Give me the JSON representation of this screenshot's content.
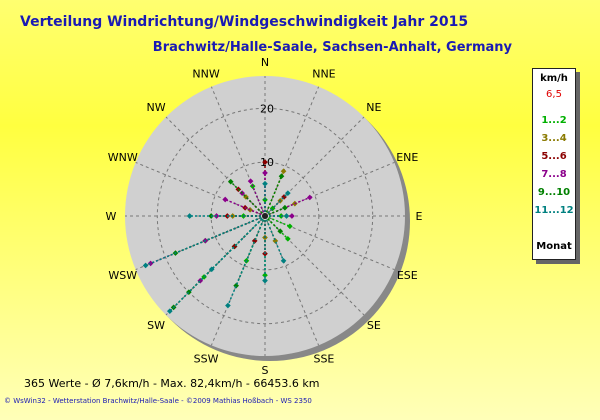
{
  "title": "Verteilung Windrichtung/Windgeschwindigkeit  Jahr 2015",
  "subtitle": "Brachwitz/Halle-Saale, Sachsen-Anhalt, Germany",
  "legend": {
    "header": "km/h",
    "top_value": "6,5",
    "items": [
      {
        "label": "1...2",
        "color": "#00b000"
      },
      {
        "label": "3...4",
        "color": "#8a7a00"
      },
      {
        "label": "5...6",
        "color": "#8b0000"
      },
      {
        "label": "7...8",
        "color": "#8b008b"
      },
      {
        "label": "9...10",
        "color": "#008000"
      },
      {
        "label": "11...12",
        "color": "#008080"
      }
    ],
    "footer": "Monat"
  },
  "footer": {
    "stats": "365 Werte   -   Ø 7,6km/h   -   Max. 82,4km/h   -   66453.6 km",
    "credits": "© WsWin32   -   Wetterstation Brachwitz/Halle-Saale   -   ©2009 Mathias Hoßbach - WS 2350"
  },
  "chart_data": {
    "type": "scatter",
    "title": "Verteilung Windrichtung/Windgeschwindigkeit  Jahr 2015",
    "directions": [
      "N",
      "NNE",
      "NE",
      "ENE",
      "E",
      "ESE",
      "SE",
      "SSE",
      "S",
      "SSW",
      "SW",
      "WSW",
      "W",
      "WNW",
      "NW",
      "NNW"
    ],
    "radial_ticks": [
      10,
      20
    ],
    "rmax": 26,
    "series": [
      {
        "name": "1...2",
        "color": "#00b000",
        "points": [
          [
            0,
            3
          ],
          [
            15,
            6
          ],
          [
            2,
            2
          ],
          [
            12,
            4
          ],
          [
            10,
            8
          ],
          [
            8,
            11
          ],
          [
            5,
            5
          ],
          [
            4,
            3
          ],
          [
            6,
            6
          ],
          [
            11,
            12
          ],
          [
            9,
            9
          ],
          [
            10,
            16
          ]
        ]
      },
      {
        "name": "3...4",
        "color": "#8a7a00",
        "points": [
          [
            1,
            9
          ],
          [
            3,
            6
          ],
          [
            14,
            5
          ],
          [
            13,
            3
          ],
          [
            2,
            4
          ],
          [
            12,
            6
          ],
          [
            7,
            5
          ],
          [
            8,
            4
          ]
        ]
      },
      {
        "name": "5...6",
        "color": "#8b0000",
        "points": [
          [
            0,
            10
          ],
          [
            13,
            4
          ],
          [
            14,
            7
          ],
          [
            12,
            7
          ],
          [
            10,
            8
          ],
          [
            8,
            7
          ],
          [
            2,
            5
          ],
          [
            9,
            5
          ]
        ]
      },
      {
        "name": "7...8",
        "color": "#8b008b",
        "points": [
          [
            15,
            7
          ],
          [
            14,
            6
          ],
          [
            13,
            8
          ],
          [
            12,
            9
          ],
          [
            11,
            12
          ],
          [
            10,
            17
          ],
          [
            3,
            9
          ],
          [
            4,
            5
          ],
          [
            0,
            8
          ],
          [
            11,
            23
          ]
        ]
      },
      {
        "name": "9...10",
        "color": "#008000",
        "points": [
          [
            10,
            24
          ],
          [
            11,
            18
          ],
          [
            9,
            14
          ],
          [
            12,
            10
          ],
          [
            14,
            9
          ],
          [
            1,
            8
          ],
          [
            3,
            4
          ],
          [
            6,
            4
          ],
          [
            10,
            20
          ]
        ]
      },
      {
        "name": "11...12",
        "color": "#008080",
        "points": [
          [
            10,
            25
          ],
          [
            11,
            24
          ],
          [
            9,
            18
          ],
          [
            12,
            14
          ],
          [
            10,
            14
          ],
          [
            2,
            6
          ],
          [
            4,
            4
          ],
          [
            8,
            12
          ],
          [
            7,
            9
          ],
          [
            0,
            6
          ]
        ]
      }
    ]
  }
}
